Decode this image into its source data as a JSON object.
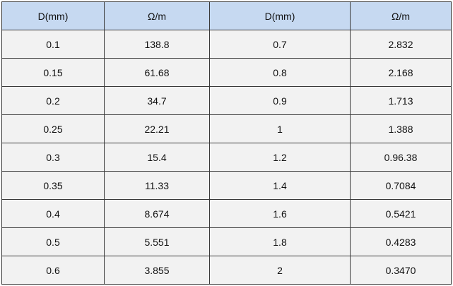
{
  "table": {
    "header": [
      "D(mm)",
      "Ω/m",
      "D(mm)",
      "Ω/m"
    ],
    "rows": [
      [
        "0.1",
        "138.8",
        "0.7",
        "2.832"
      ],
      [
        "0.15",
        "61.68",
        "0.8",
        "2.168"
      ],
      [
        "0.2",
        "34.7",
        "0.9",
        "1.713"
      ],
      [
        "0.25",
        "22.21",
        "1",
        "1.388"
      ],
      [
        "0.3",
        "15.4",
        "1.2",
        "0.96.38"
      ],
      [
        "0.35",
        "11.33",
        "1.4",
        "0.7084"
      ],
      [
        "0.4",
        "8.674",
        "1.6",
        "0.5421"
      ],
      [
        "0.5",
        "5.551",
        "1.8",
        "0.4283"
      ],
      [
        "0.6",
        "3.855",
        "2",
        "0.3470"
      ]
    ]
  }
}
